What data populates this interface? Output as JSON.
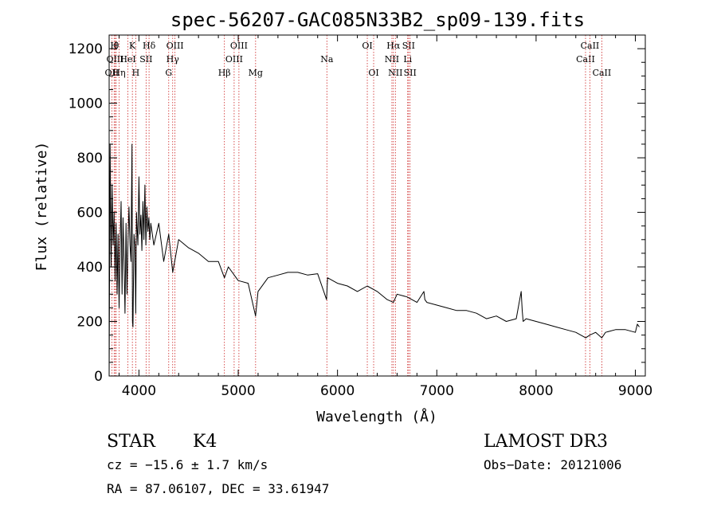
{
  "chart_data": {
    "type": "line",
    "title": "spec-56207-GAC085N33B2_sp09-139.fits",
    "xlabel": "Wavelength (Å)",
    "ylabel": "Flux (relative)",
    "xlim": [
      3700,
      9100
    ],
    "ylim": [
      0,
      1250
    ],
    "x_ticks": [
      4000,
      5000,
      6000,
      7000,
      8000,
      9000
    ],
    "y_ticks": [
      0,
      200,
      400,
      600,
      800,
      1000,
      1200
    ],
    "series": [
      {
        "name": "spectrum",
        "x": [
          3700,
          3710,
          3720,
          3730,
          3740,
          3750,
          3760,
          3770,
          3780,
          3790,
          3800,
          3810,
          3820,
          3830,
          3840,
          3850,
          3860,
          3870,
          3880,
          3890,
          3900,
          3910,
          3920,
          3930,
          3935,
          3940,
          3950,
          3960,
          3968,
          3975,
          3990,
          4000,
          4010,
          4020,
          4030,
          4040,
          4050,
          4060,
          4070,
          4080,
          4090,
          4100,
          4110,
          4120,
          4150,
          4200,
          4250,
          4300,
          4340,
          4400,
          4500,
          4600,
          4700,
          4800,
          4861,
          4900,
          5000,
          5100,
          5175,
          5200,
          5300,
          5400,
          5500,
          5600,
          5700,
          5800,
          5890,
          5900,
          6000,
          6100,
          6200,
          6300,
          6400,
          6500,
          6563,
          6600,
          6700,
          6800,
          6870,
          6880,
          6900,
          7000,
          7100,
          7200,
          7300,
          7400,
          7500,
          7600,
          7700,
          7800,
          7850,
          7860,
          7870,
          7900,
          8000,
          8100,
          8200,
          8300,
          8400,
          8500,
          8542,
          8600,
          8662,
          8700,
          8800,
          8900,
          9000,
          9020,
          9040
        ],
        "y": [
          0,
          850,
          400,
          700,
          480,
          600,
          350,
          560,
          300,
          520,
          250,
          480,
          640,
          300,
          580,
          420,
          230,
          560,
          300,
          500,
          620,
          480,
          420,
          850,
          200,
          180,
          520,
          480,
          230,
          600,
          480,
          730,
          520,
          590,
          460,
          640,
          500,
          700,
          480,
          620,
          530,
          580,
          500,
          560,
          480,
          560,
          420,
          520,
          380,
          500,
          470,
          450,
          420,
          420,
          360,
          400,
          350,
          340,
          220,
          310,
          360,
          370,
          380,
          380,
          370,
          375,
          280,
          360,
          340,
          330,
          310,
          330,
          310,
          280,
          270,
          300,
          290,
          270,
          310,
          280,
          270,
          260,
          250,
          240,
          240,
          230,
          210,
          220,
          200,
          210,
          310,
          240,
          200,
          210,
          200,
          190,
          180,
          170,
          160,
          140,
          150,
          160,
          140,
          160,
          170,
          170,
          160,
          190,
          180
        ]
      }
    ],
    "lines": [
      {
        "wavelength": 3727,
        "label": "OII",
        "row": 3
      },
      {
        "wavelength": 3750,
        "label": "H",
        "row": 1
      },
      {
        "wavelength": 3772,
        "label": "θ",
        "row": 1
      },
      {
        "wavelength": 3760,
        "label": "OIII",
        "row": 2
      },
      {
        "wavelength": 3800,
        "label": "Hη",
        "row": 3
      },
      {
        "wavelength": 3889,
        "label": "HeI",
        "row": 2
      },
      {
        "wavelength": 3934,
        "label": "K",
        "row": 1
      },
      {
        "wavelength": 3968,
        "label": "H",
        "row": 3
      },
      {
        "wavelength": 4072,
        "label": "SII",
        "row": 2
      },
      {
        "wavelength": 4102,
        "label": "Hδ",
        "row": 1
      },
      {
        "wavelength": 4300,
        "label": "G",
        "row": 3
      },
      {
        "wavelength": 4340,
        "label": "Hγ",
        "row": 2
      },
      {
        "wavelength": 4363,
        "label": "OIII",
        "row": 1
      },
      {
        "wavelength": 4861,
        "label": "Hβ",
        "row": 3
      },
      {
        "wavelength": 4959,
        "label": "OIII",
        "row": 2
      },
      {
        "wavelength": 5007,
        "label": "OIII",
        "row": 1
      },
      {
        "wavelength": 5175,
        "label": "Mg",
        "row": 3
      },
      {
        "wavelength": 5893,
        "label": "Na",
        "row": 2
      },
      {
        "wavelength": 6300,
        "label": "OI",
        "row": 1
      },
      {
        "wavelength": 6364,
        "label": "OI",
        "row": 3
      },
      {
        "wavelength": 6548,
        "label": "NII",
        "row": 2
      },
      {
        "wavelength": 6563,
        "label": "Hα",
        "row": 1
      },
      {
        "wavelength": 6583,
        "label": "NII",
        "row": 3
      },
      {
        "wavelength": 6707,
        "label": "Li",
        "row": 2
      },
      {
        "wavelength": 6716,
        "label": "SII",
        "row": 1
      },
      {
        "wavelength": 6731,
        "label": "SII",
        "row": 3
      },
      {
        "wavelength": 8498,
        "label": "CaII",
        "row": 2
      },
      {
        "wavelength": 8542,
        "label": "CaII",
        "row": 1
      },
      {
        "wavelength": 8662,
        "label": "CaII",
        "row": 3
      }
    ],
    "line_color": "#cc2222"
  },
  "info": {
    "object_class": "STAR",
    "subclass": "K4",
    "survey": "LAMOST DR3",
    "cz": "cz = −15.6 ± 1.7 km/s",
    "obs_date": "Obs−Date: 20121006",
    "coords": "RA =  87.06107, DEC =  33.61947"
  }
}
